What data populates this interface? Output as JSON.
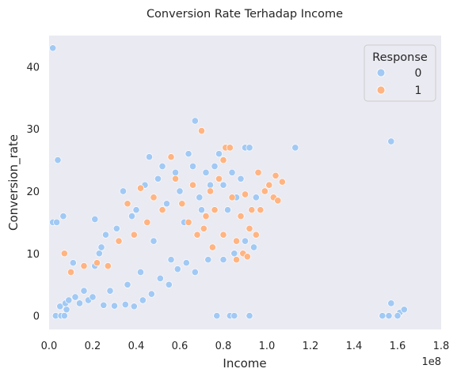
{
  "chart_data": {
    "type": "scatter",
    "title": "Conversion Rate Terhadap Income",
    "xlabel": "Income",
    "ylabel": "Conversion_rate",
    "x_offset_label": "1e8",
    "xlim": [
      0,
      180000000
    ],
    "ylim": [
      -2.2,
      45
    ],
    "x_ticks": [
      0,
      20000000,
      40000000,
      60000000,
      80000000,
      100000000,
      120000000,
      140000000,
      160000000,
      180000000
    ],
    "x_tick_labels": [
      "0.0",
      "0.2",
      "0.4",
      "0.6",
      "0.8",
      "1.0",
      "1.2",
      "1.4",
      "1.6",
      "1.8"
    ],
    "y_ticks": [
      0,
      10,
      20,
      30,
      40
    ],
    "y_tick_labels": [
      "0",
      "10",
      "20",
      "30",
      "40"
    ],
    "grid": false,
    "legend": {
      "title": "Response",
      "placement": "top-right",
      "entries": [
        "0",
        "1"
      ]
    },
    "series": [
      {
        "name": "0",
        "color": "#a1c9f4",
        "points": [
          [
            1700000,
            43
          ],
          [
            1700000,
            15
          ],
          [
            3500000,
            15
          ],
          [
            4000000,
            25
          ],
          [
            6500000,
            16
          ],
          [
            11000000,
            8.5
          ],
          [
            3000000,
            0
          ],
          [
            5500000,
            0
          ],
          [
            7000000,
            0
          ],
          [
            8000000,
            1
          ],
          [
            5000000,
            1.5
          ],
          [
            7500000,
            2
          ],
          [
            9000000,
            2.5
          ],
          [
            12000000,
            3
          ],
          [
            14000000,
            2
          ],
          [
            16000000,
            4
          ],
          [
            18000000,
            2.5
          ],
          [
            20000000,
            3
          ],
          [
            21000000,
            15.5
          ],
          [
            21000000,
            8
          ],
          [
            23000000,
            10
          ],
          [
            24000000,
            11
          ],
          [
            26000000,
            13
          ],
          [
            28000000,
            4
          ],
          [
            31000000,
            14
          ],
          [
            34000000,
            20
          ],
          [
            36000000,
            5
          ],
          [
            38000000,
            16
          ],
          [
            40000000,
            17
          ],
          [
            42000000,
            7
          ],
          [
            44000000,
            21
          ],
          [
            46000000,
            25.5
          ],
          [
            48000000,
            12
          ],
          [
            50000000,
            22
          ],
          [
            52000000,
            24
          ],
          [
            54000000,
            18
          ],
          [
            56000000,
            9
          ],
          [
            58000000,
            23
          ],
          [
            60000000,
            20
          ],
          [
            62000000,
            15
          ],
          [
            64000000,
            26
          ],
          [
            66000000,
            24
          ],
          [
            67000000,
            31.3
          ],
          [
            69000000,
            19
          ],
          [
            70000000,
            17
          ],
          [
            72000000,
            23
          ],
          [
            74000000,
            21
          ],
          [
            76000000,
            24
          ],
          [
            78000000,
            26
          ],
          [
            80000000,
            21
          ],
          [
            82000000,
            17
          ],
          [
            84000000,
            23
          ],
          [
            86000000,
            19
          ],
          [
            88000000,
            22
          ],
          [
            90000000,
            27
          ],
          [
            92000000,
            27
          ],
          [
            95000000,
            19
          ],
          [
            113000000,
            27
          ],
          [
            157000000,
            28
          ],
          [
            157000000,
            2
          ],
          [
            161000000,
            0.5
          ],
          [
            163000000,
            1
          ],
          [
            153000000,
            0
          ],
          [
            156000000,
            0
          ],
          [
            160000000,
            0
          ],
          [
            77000000,
            0
          ],
          [
            83000000,
            0
          ],
          [
            85000000,
            0
          ],
          [
            92000000,
            0
          ],
          [
            73000000,
            9
          ],
          [
            80000000,
            9
          ],
          [
            85000000,
            10
          ],
          [
            90000000,
            12
          ],
          [
            94000000,
            11
          ],
          [
            67000000,
            7
          ],
          [
            63000000,
            8.5
          ],
          [
            59000000,
            7.5
          ],
          [
            55000000,
            5
          ],
          [
            51000000,
            6
          ],
          [
            47000000,
            3.5
          ],
          [
            43000000,
            2.5
          ],
          [
            39000000,
            1.5
          ],
          [
            35000000,
            1.8
          ],
          [
            30000000,
            1.6
          ],
          [
            25000000,
            1.7
          ]
        ]
      },
      {
        "name": "1",
        "color": "#ffb482",
        "points": [
          [
            7000000,
            10
          ],
          [
            10000000,
            7
          ],
          [
            16000000,
            8
          ],
          [
            22000000,
            8.5
          ],
          [
            27000000,
            8
          ],
          [
            32000000,
            12
          ],
          [
            36000000,
            18
          ],
          [
            39000000,
            13
          ],
          [
            42000000,
            20.5
          ],
          [
            45000000,
            15
          ],
          [
            48000000,
            19
          ],
          [
            52000000,
            17
          ],
          [
            56000000,
            25.5
          ],
          [
            58000000,
            22
          ],
          [
            61000000,
            18
          ],
          [
            64000000,
            15
          ],
          [
            66000000,
            21
          ],
          [
            68000000,
            13
          ],
          [
            70000000,
            29.7
          ],
          [
            72000000,
            16
          ],
          [
            74000000,
            20
          ],
          [
            76000000,
            17
          ],
          [
            78000000,
            22
          ],
          [
            80000000,
            25
          ],
          [
            81000000,
            27
          ],
          [
            83000000,
            27
          ],
          [
            84000000,
            19
          ],
          [
            86000000,
            12
          ],
          [
            88000000,
            16
          ],
          [
            89000000,
            10
          ],
          [
            90000000,
            19.5
          ],
          [
            92000000,
            14
          ],
          [
            93000000,
            17
          ],
          [
            95000000,
            13
          ],
          [
            96000000,
            23
          ],
          [
            97000000,
            17
          ],
          [
            99000000,
            20
          ],
          [
            101000000,
            21
          ],
          [
            103000000,
            19
          ],
          [
            104000000,
            22.5
          ],
          [
            105000000,
            18.5
          ],
          [
            107000000,
            21.5
          ],
          [
            86000000,
            9
          ],
          [
            91000000,
            9.5
          ],
          [
            80000000,
            13
          ],
          [
            75000000,
            11
          ],
          [
            71000000,
            14
          ]
        ]
      }
    ]
  }
}
